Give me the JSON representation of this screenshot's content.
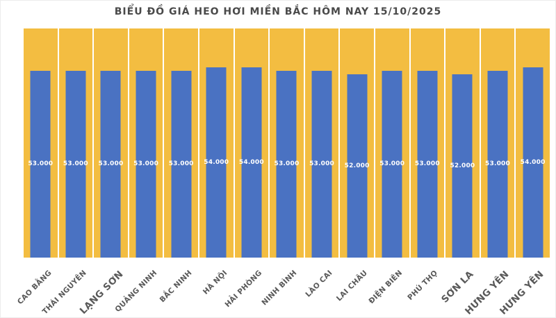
{
  "chart": {
    "title": "BIỂU ĐỒ GIÁ HEO HƠI MIỀN BẮC HÔM NAY 15/10/2025"
  },
  "colors": {
    "bar_fill": "#4A72C2",
    "plot_background": "#F3BD41",
    "gridline": "#FFFFFF",
    "value_label_text": "#FFFFFF",
    "axis_label_text": "#595959",
    "title_text": "#4A4A4A",
    "page_background": "#FFFFFF"
  },
  "chart_data": {
    "type": "bar",
    "title": "BIỂU ĐỒ GIÁ HEO HƠI MIỀN BẮC HÔM NAY 15/10/2025",
    "categories": [
      "CAO BẰNG",
      "THÁI NGUYÊN",
      "LẠNG SƠN",
      "QUẢNG NINH",
      "BẮC NINH",
      "HÀ NỘI",
      "HẢI PHÒNG",
      "NINH BÌNH",
      "LÀO CAI",
      "LAI CHÂU",
      "ĐIỆN BIÊN",
      "PHÚ THỌ",
      "SƠN LA",
      "HƯNG YÊN",
      "HƯNG YÊN"
    ],
    "values": [
      53000,
      53000,
      53000,
      53000,
      53000,
      54000,
      54000,
      53000,
      53000,
      52000,
      53000,
      53000,
      52000,
      53000,
      54000
    ],
    "value_labels": [
      "53.000",
      "53.000",
      "53.000",
      "53.000",
      "53.000",
      "54.000",
      "54.000",
      "53.000",
      "53.000",
      "52.000",
      "53.000",
      "53.000",
      "52.000",
      "53.000",
      "54.000"
    ],
    "emphasized_category_indexes": [
      2,
      12,
      13,
      14
    ],
    "xlabel": "",
    "ylabel": "",
    "ylim": [
      0,
      65000
    ],
    "y_axis_ticks_visible": false,
    "grid": "vertical-white-category-separators",
    "legend": "none",
    "value_label_position": "center-of-bar",
    "x_label_rotation_deg": -45
  }
}
